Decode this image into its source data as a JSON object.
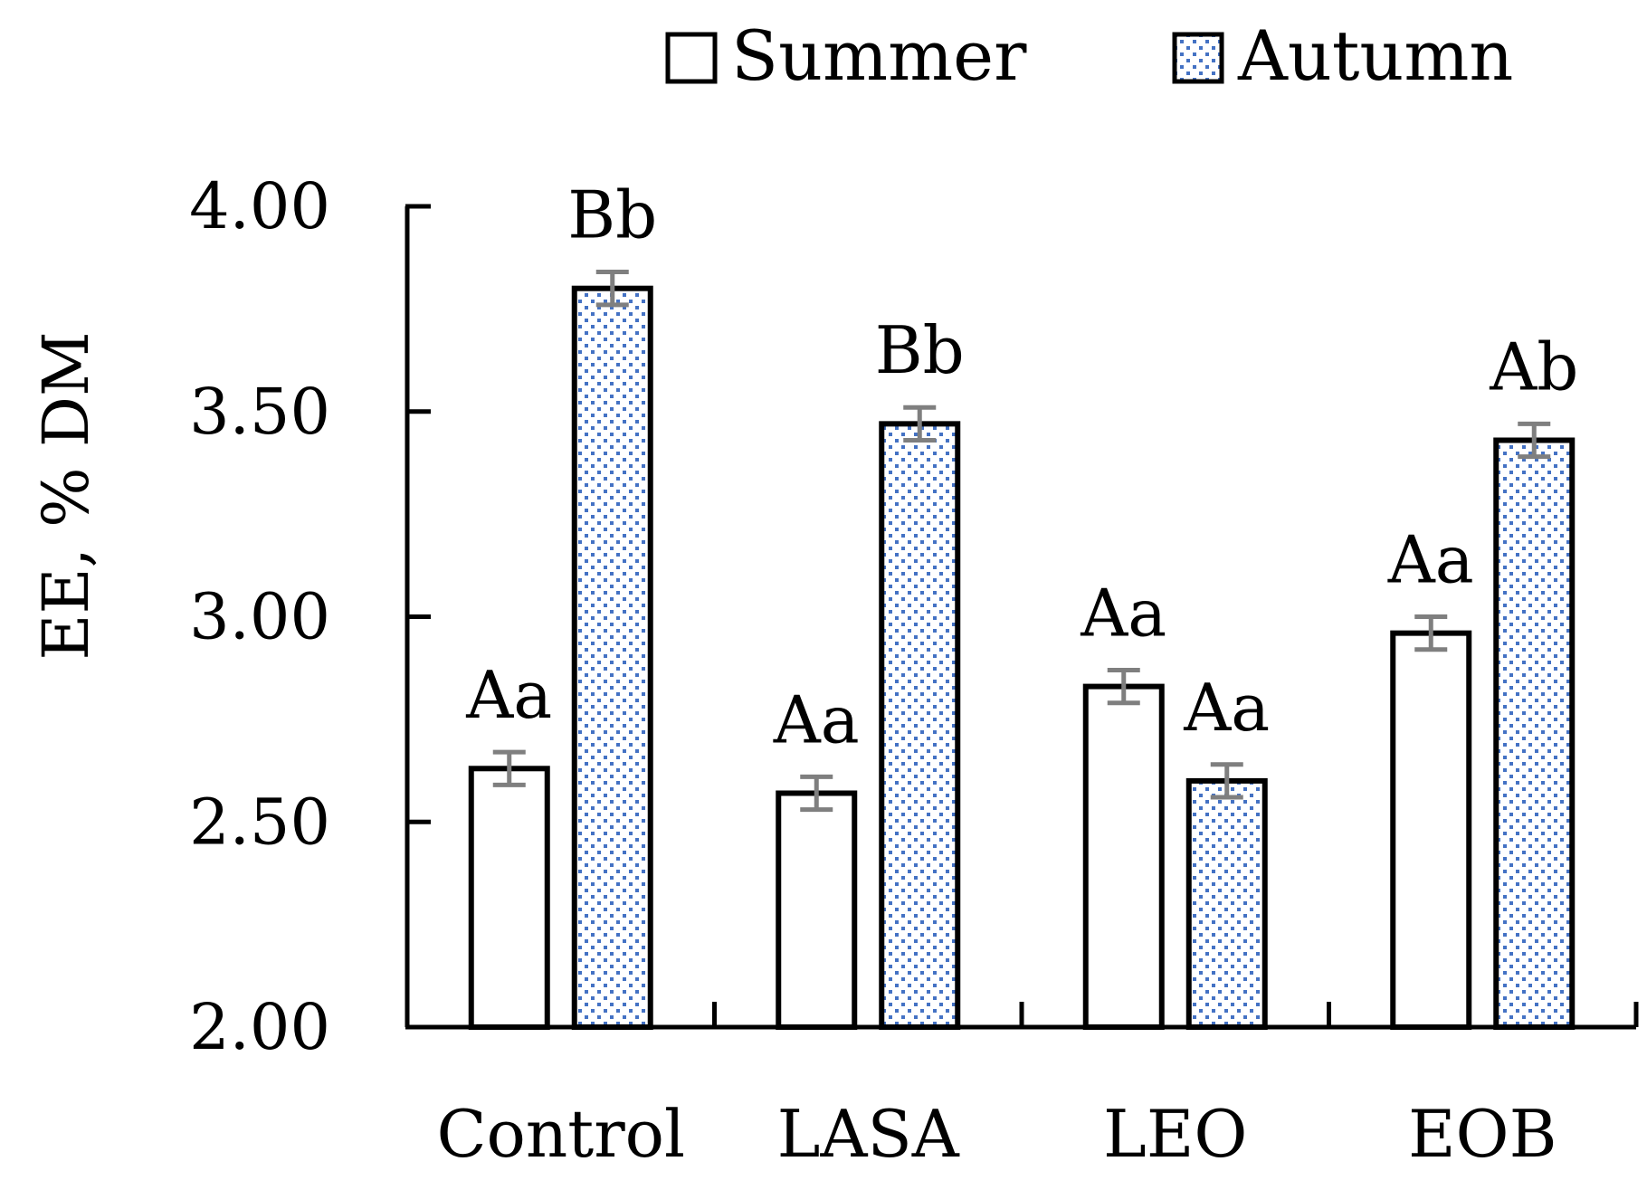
{
  "chart_data": {
    "type": "bar",
    "title": "",
    "xlabel": "",
    "ylabel": "EE, % DM",
    "ylim": [
      2.0,
      4.0
    ],
    "yticks": [
      "2.00",
      "2.50",
      "3.00",
      "3.50",
      "4.00"
    ],
    "ytick_values": [
      2.0,
      2.5,
      3.0,
      3.5,
      4.0
    ],
    "categories": [
      "Control",
      "LASA",
      "LEO",
      "EOB"
    ],
    "legend_position": "top-right",
    "series": [
      {
        "name": "Summer",
        "pattern": "none",
        "color": "#ffffff",
        "values": [
          2.63,
          2.57,
          2.83,
          2.96
        ],
        "errors": [
          0.04,
          0.04,
          0.04,
          0.04
        ],
        "labels": [
          "Aa",
          "Aa",
          "Aa",
          "Aa"
        ]
      },
      {
        "name": "Autumn",
        "pattern": "dotted",
        "color": "#4472c4",
        "values": [
          3.8,
          3.47,
          2.6,
          3.43
        ],
        "errors": [
          0.04,
          0.04,
          0.04,
          0.04
        ],
        "labels": [
          "Bb",
          "Bb",
          "Aa",
          "Ab"
        ]
      }
    ]
  }
}
